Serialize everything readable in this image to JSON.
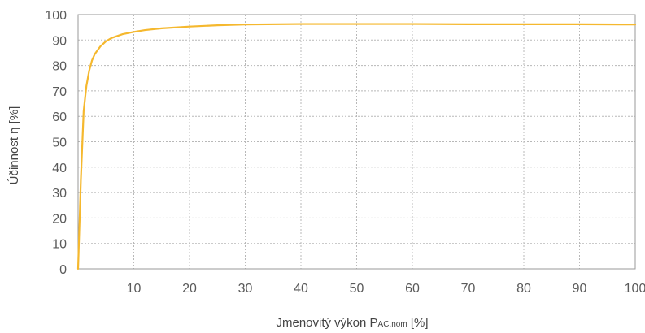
{
  "chart_data": {
    "type": "line",
    "xlabel": {
      "main": "Jmenovitý výkon P",
      "sub": "AC,nom",
      "suffix": " [%]"
    },
    "ylabel": "Účinnost η [%]",
    "xlim": [
      0,
      100
    ],
    "ylim": [
      0,
      100
    ],
    "xticks": [
      10,
      20,
      30,
      40,
      50,
      60,
      70,
      80,
      90,
      100
    ],
    "yticks": [
      0,
      10,
      20,
      30,
      40,
      50,
      60,
      70,
      80,
      90,
      100
    ],
    "grid": true,
    "series": [
      {
        "color": "#f5b82e",
        "x": [
          0,
          0.5,
          1,
          1.5,
          2,
          2.5,
          3,
          4,
          5,
          6,
          8,
          10,
          12,
          15,
          20,
          25,
          30,
          40,
          50,
          60,
          70,
          80,
          90,
          100
        ],
        "y": [
          0,
          35,
          62,
          72,
          78,
          82,
          84.5,
          87.5,
          89.5,
          90.8,
          92.3,
          93.2,
          93.9,
          94.6,
          95.3,
          95.8,
          96.1,
          96.3,
          96.3,
          96.3,
          96.2,
          96.2,
          96.2,
          96.1
        ]
      }
    ]
  }
}
